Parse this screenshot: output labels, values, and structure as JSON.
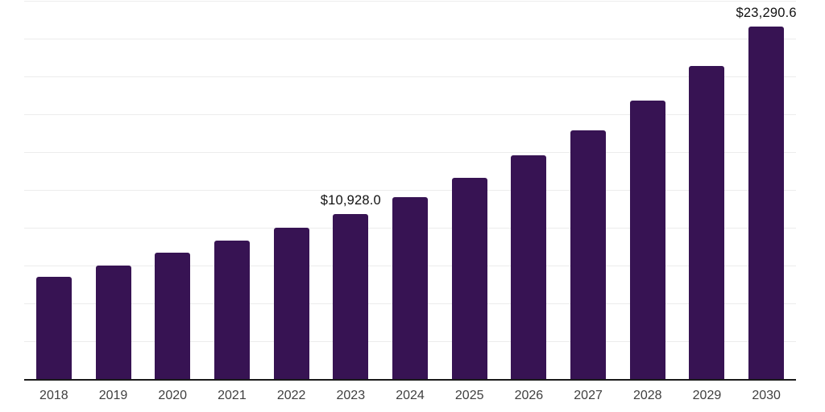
{
  "chart_data": {
    "type": "bar",
    "title": "",
    "xlabel": "",
    "ylabel": "",
    "categories": [
      "2018",
      "2019",
      "2020",
      "2021",
      "2022",
      "2023",
      "2024",
      "2025",
      "2026",
      "2027",
      "2028",
      "2029",
      "2030"
    ],
    "values": [
      6750,
      7500,
      8350,
      9150,
      10000,
      10928.0,
      12000,
      13300,
      14800,
      16450,
      18400,
      20700,
      23290.6
    ],
    "value_labels": [
      "",
      "",
      "",
      "",
      "",
      "$10,928.0",
      "",
      "",
      "",
      "",
      "",
      "",
      "$23,290.6"
    ],
    "ylim": [
      0,
      25000
    ],
    "grid_step": 2500,
    "grid": true,
    "legend": false,
    "colors": {
      "bar": "#371353",
      "gridline": "#ececec",
      "axis_line": "#1a1a1a",
      "tick_label": "#3f3f3f",
      "value_label": "#111111",
      "background": "#ffffff"
    }
  }
}
